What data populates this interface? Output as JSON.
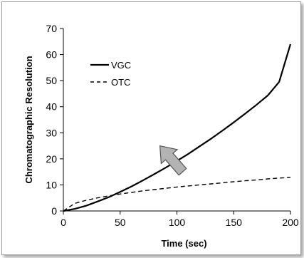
{
  "chart_data": {
    "type": "line",
    "title": "",
    "xlabel": "Time (sec)",
    "ylabel": "Chromatographic Resolution",
    "xlim": [
      0,
      200
    ],
    "ylim": [
      0,
      70
    ],
    "xticks": [
      "0",
      "50",
      "100",
      "150",
      "200"
    ],
    "yticks": [
      "0",
      "10",
      "20",
      "30",
      "40",
      "50",
      "60",
      "70"
    ],
    "grid": false,
    "legend_position": "top-left",
    "series": [
      {
        "name": "VGC",
        "style": "solid",
        "color": "#000000",
        "x": [
          0,
          10,
          20,
          30,
          40,
          50,
          60,
          70,
          80,
          90,
          100,
          110,
          120,
          130,
          140,
          150,
          160,
          170,
          180,
          190,
          200
        ],
        "y": [
          0,
          0.8,
          2.0,
          3.6,
          5.3,
          7.3,
          9.4,
          11.7,
          14.1,
          16.6,
          19.2,
          21.9,
          24.8,
          27.7,
          30.8,
          34.0,
          37.3,
          40.7,
          44.3,
          49.5,
          64.0
        ]
      },
      {
        "name": "OTC",
        "style": "dashed",
        "color": "#000000",
        "x": [
          0,
          10,
          20,
          30,
          40,
          50,
          60,
          70,
          80,
          90,
          100,
          110,
          120,
          130,
          140,
          150,
          160,
          170,
          180,
          190,
          200
        ],
        "y": [
          0,
          2.9,
          4.1,
          5.0,
          5.8,
          6.5,
          7.1,
          7.7,
          8.2,
          8.7,
          9.2,
          9.6,
          10.0,
          10.4,
          10.8,
          11.2,
          11.6,
          11.9,
          12.3,
          12.6,
          12.9
        ]
      }
    ],
    "annotations": [
      {
        "type": "arrow",
        "direction": "up-right",
        "color": "#b3b3b3",
        "from": [
          105,
          15
        ],
        "to": [
          85,
          25
        ]
      }
    ]
  }
}
